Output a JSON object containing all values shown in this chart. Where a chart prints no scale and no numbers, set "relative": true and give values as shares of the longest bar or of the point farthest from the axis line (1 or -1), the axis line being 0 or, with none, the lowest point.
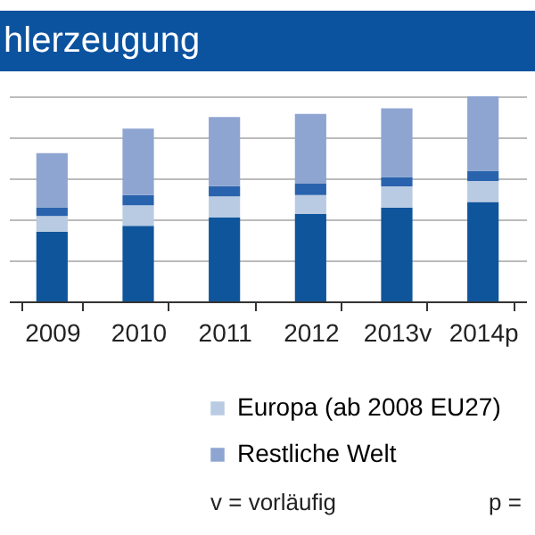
{
  "chart_data": {
    "type": "bar",
    "title": "hlerzeugung",
    "relative": true,
    "stacked": true,
    "grid": "y",
    "legend": "bottom",
    "categories": [
      "2009",
      "2010",
      "2011",
      "2012",
      "2013v",
      "2014p"
    ],
    "series": [
      {
        "color": "#0f559c",
        "values": [
          0.34,
          0.369,
          0.409,
          0.426,
          0.458,
          0.485
        ]
      },
      {
        "name": "Europa (ab 2008 EU27)",
        "color": "#b9cbe3",
        "values": [
          0.076,
          0.099,
          0.103,
          0.092,
          0.103,
          0.102
        ]
      },
      {
        "color": "#2a63ad",
        "values": [
          0.043,
          0.05,
          0.05,
          0.056,
          0.046,
          0.05
        ]
      },
      {
        "name": "Restliche Welt",
        "color": "#8ea5d1",
        "values": [
          0.264,
          0.324,
          0.337,
          0.34,
          0.334,
          0.363
        ]
      }
    ],
    "annotations": [
      "v = vorläufig",
      "p ="
    ]
  }
}
